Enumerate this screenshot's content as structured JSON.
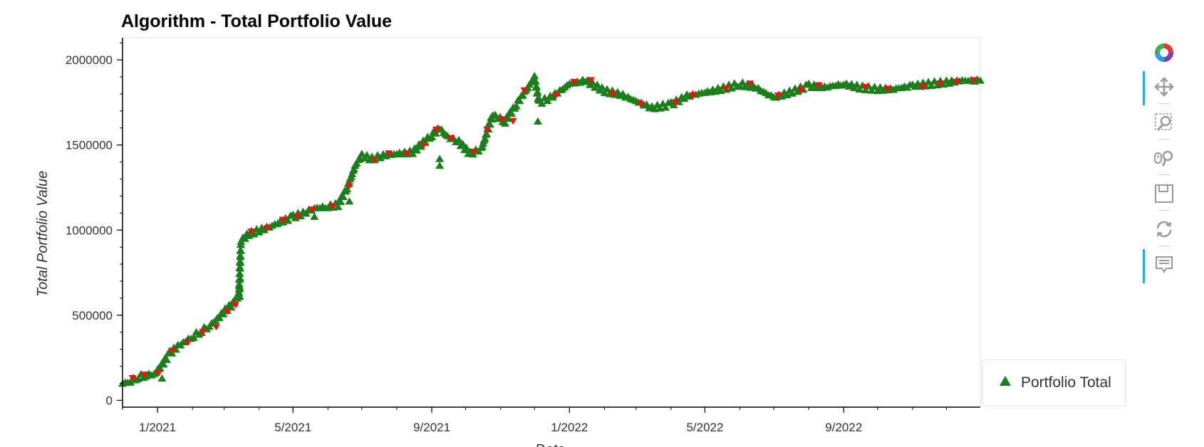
{
  "chart_data": {
    "type": "scatter",
    "title": "Algorithm - Total Portfolio Value",
    "xlabel": "Date",
    "ylabel": "Total Portfolio Value",
    "x_range": [
      "2020-12-01",
      "2022-12-31"
    ],
    "ylim": [
      -40000,
      2130000
    ],
    "y_ticks": [
      0,
      500000,
      1000000,
      1500000,
      2000000
    ],
    "y_tick_labels": [
      "0",
      "500000",
      "1000000",
      "1500000",
      "2000000"
    ],
    "x_ticks": [
      "2021-01-01",
      "2021-05-01",
      "2021-09-01",
      "2022-01-01",
      "2022-05-01",
      "2022-09-01"
    ],
    "x_tick_labels": [
      "1/2021",
      "5/2021",
      "9/2021",
      "1/2022",
      "5/2022",
      "9/2022"
    ],
    "grid": false,
    "legend_position": "right",
    "series": [
      {
        "name": "Portfolio Total",
        "marker": "triangle",
        "color": "#1a7f1a",
        "points": [
          [
            "2020-12-01",
            100000
          ],
          [
            "2020-12-08",
            115000
          ],
          [
            "2020-12-15",
            140000
          ],
          [
            "2020-12-22",
            150000
          ],
          [
            "2020-12-29",
            155000
          ],
          [
            "2021-01-05",
            210000
          ],
          [
            "2021-01-12",
            280000
          ],
          [
            "2021-01-19",
            320000
          ],
          [
            "2021-01-26",
            350000
          ],
          [
            "2021-02-02",
            380000
          ],
          [
            "2021-02-09",
            410000
          ],
          [
            "2021-02-16",
            440000
          ],
          [
            "2021-02-23",
            480000
          ],
          [
            "2021-03-02",
            530000
          ],
          [
            "2021-03-09",
            570000
          ],
          [
            "2021-03-14",
            620000
          ],
          [
            "2021-03-16",
            940000
          ],
          [
            "2021-03-23",
            980000
          ],
          [
            "2021-04-01",
            1000000
          ],
          [
            "2021-04-10",
            1020000
          ],
          [
            "2021-04-20",
            1050000
          ],
          [
            "2021-05-01",
            1080000
          ],
          [
            "2021-05-10",
            1100000
          ],
          [
            "2021-05-20",
            1130000
          ],
          [
            "2021-06-01",
            1140000
          ],
          [
            "2021-06-10",
            1150000
          ],
          [
            "2021-06-18",
            1250000
          ],
          [
            "2021-06-25",
            1380000
          ],
          [
            "2021-07-01",
            1440000
          ],
          [
            "2021-07-10",
            1420000
          ],
          [
            "2021-07-20",
            1440000
          ],
          [
            "2021-08-01",
            1450000
          ],
          [
            "2021-08-15",
            1460000
          ],
          [
            "2021-09-01",
            1560000
          ],
          [
            "2021-09-08",
            1600000
          ],
          [
            "2021-09-15",
            1550000
          ],
          [
            "2021-09-25",
            1520000
          ],
          [
            "2021-10-05",
            1450000
          ],
          [
            "2021-10-15",
            1480000
          ],
          [
            "2021-10-25",
            1680000
          ],
          [
            "2021-11-05",
            1640000
          ],
          [
            "2021-11-15",
            1740000
          ],
          [
            "2021-11-25",
            1840000
          ],
          [
            "2021-12-01",
            1900000
          ],
          [
            "2021-12-05",
            1750000
          ],
          [
            "2021-12-15",
            1780000
          ],
          [
            "2022-01-01",
            1860000
          ],
          [
            "2022-01-15",
            1880000
          ],
          [
            "2022-02-01",
            1820000
          ],
          [
            "2022-02-15",
            1800000
          ],
          [
            "2022-03-01",
            1760000
          ],
          [
            "2022-03-15",
            1720000
          ],
          [
            "2022-04-01",
            1740000
          ],
          [
            "2022-04-15",
            1790000
          ],
          [
            "2022-05-01",
            1810000
          ],
          [
            "2022-05-15",
            1830000
          ],
          [
            "2022-06-01",
            1860000
          ],
          [
            "2022-06-15",
            1840000
          ],
          [
            "2022-07-01",
            1780000
          ],
          [
            "2022-07-15",
            1810000
          ],
          [
            "2022-08-01",
            1850000
          ],
          [
            "2022-08-15",
            1840000
          ],
          [
            "2022-09-01",
            1860000
          ],
          [
            "2022-09-15",
            1840000
          ],
          [
            "2022-10-01",
            1830000
          ],
          [
            "2022-10-15",
            1830000
          ],
          [
            "2022-11-01",
            1850000
          ],
          [
            "2022-11-15",
            1860000
          ],
          [
            "2022-12-01",
            1870000
          ],
          [
            "2022-12-15",
            1880000
          ],
          [
            "2022-12-31",
            1880000
          ]
        ]
      }
    ],
    "outliers": [
      [
        "2021-03-15",
        720000
      ],
      [
        "2021-03-15",
        660000
      ],
      [
        "2021-03-15",
        610000
      ],
      [
        "2021-06-20",
        1170000
      ],
      [
        "2021-09-08",
        1380000
      ],
      [
        "2021-09-08",
        1420000
      ],
      [
        "2021-12-04",
        1640000
      ],
      [
        "2021-05-20",
        1080000
      ],
      [
        "2021-01-05",
        130000
      ]
    ],
    "highlight_series": {
      "marker": "inverted-triangle",
      "color": "#ee1111",
      "points": [
        [
          "2020-12-10",
          130000
        ],
        [
          "2020-12-20",
          150000
        ],
        [
          "2021-01-02",
          160000
        ],
        [
          "2021-01-14",
          290000
        ],
        [
          "2021-01-28",
          340000
        ],
        [
          "2021-02-10",
          400000
        ],
        [
          "2021-02-22",
          430000
        ],
        [
          "2021-03-04",
          520000
        ],
        [
          "2021-03-11",
          560000
        ],
        [
          "2021-03-25",
          990000
        ],
        [
          "2021-04-08",
          1010000
        ],
        [
          "2021-04-22",
          1060000
        ],
        [
          "2021-05-05",
          1080000
        ],
        [
          "2021-05-18",
          1120000
        ],
        [
          "2021-06-05",
          1140000
        ],
        [
          "2021-06-20",
          1260000
        ],
        [
          "2021-07-12",
          1410000
        ],
        [
          "2021-07-25",
          1450000
        ],
        [
          "2021-08-10",
          1450000
        ],
        [
          "2021-08-25",
          1500000
        ],
        [
          "2021-09-05",
          1590000
        ],
        [
          "2021-09-18",
          1540000
        ],
        [
          "2021-10-08",
          1460000
        ],
        [
          "2021-10-20",
          1590000
        ],
        [
          "2021-11-02",
          1650000
        ],
        [
          "2021-11-12",
          1640000
        ],
        [
          "2021-11-22",
          1820000
        ],
        [
          "2021-12-20",
          1790000
        ],
        [
          "2022-01-05",
          1870000
        ],
        [
          "2022-01-20",
          1880000
        ],
        [
          "2022-02-08",
          1800000
        ],
        [
          "2022-03-05",
          1740000
        ],
        [
          "2022-04-05",
          1750000
        ],
        [
          "2022-04-20",
          1790000
        ],
        [
          "2022-05-20",
          1830000
        ],
        [
          "2022-06-10",
          1860000
        ],
        [
          "2022-07-05",
          1790000
        ],
        [
          "2022-07-25",
          1820000
        ],
        [
          "2022-08-10",
          1850000
        ],
        [
          "2022-09-20",
          1840000
        ],
        [
          "2022-10-10",
          1830000
        ],
        [
          "2022-11-10",
          1840000
        ],
        [
          "2022-11-25",
          1860000
        ],
        [
          "2022-12-10",
          1870000
        ],
        [
          "2022-12-25",
          1880000
        ]
      ]
    }
  },
  "toolbar": {
    "tools": [
      {
        "name": "bokeh-logo-icon",
        "active": false
      },
      {
        "name": "pan-icon",
        "active": true
      },
      {
        "name": "box-zoom-icon",
        "active": false
      },
      {
        "name": "wheel-zoom-icon",
        "active": false
      },
      {
        "name": "save-icon",
        "active": false
      },
      {
        "name": "reset-icon",
        "active": false
      },
      {
        "name": "hover-icon",
        "active": true
      }
    ],
    "accent_color": "#26aae1"
  }
}
